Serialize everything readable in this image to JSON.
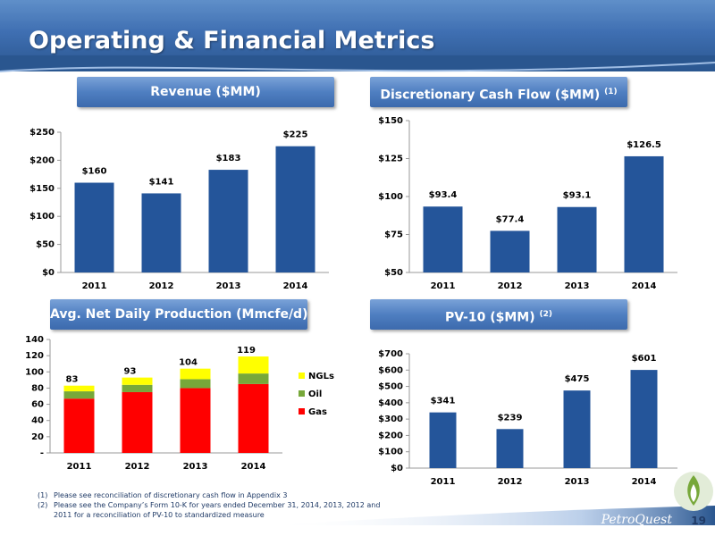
{
  "header": {
    "title": "Operating & Financial Metrics"
  },
  "panels": {
    "revenue": {
      "label": "Revenue ($MM)"
    },
    "dcf": {
      "label": "Discretionary Cash Flow ($MM)",
      "note": "(1)"
    },
    "production": {
      "label": "Avg. Net Daily Production (Mmcfe/d)"
    },
    "pv10": {
      "label": "PV-10 ($MM)",
      "note": "(2)"
    }
  },
  "chart_data": [
    {
      "id": "revenue",
      "type": "bar",
      "categories": [
        "2011",
        "2012",
        "2013",
        "2014"
      ],
      "values": [
        160,
        141,
        183,
        225
      ],
      "data_labels": [
        "$160",
        "$141",
        "$183",
        "$225"
      ],
      "yticks": [
        "$0",
        "$50",
        "$100",
        "$150",
        "$200",
        "$250"
      ],
      "ylim": [
        0,
        250
      ],
      "color": "#24559a"
    },
    {
      "id": "dcf",
      "type": "bar",
      "categories": [
        "2011",
        "2012",
        "2013",
        "2014"
      ],
      "values": [
        93.4,
        77.4,
        93.1,
        126.5
      ],
      "data_labels": [
        "$93.4",
        "$77.4",
        "$93.1",
        "$126.5"
      ],
      "yticks": [
        "$50",
        "$75",
        "$100",
        "$125",
        "$150"
      ],
      "ylim": [
        50,
        150
      ],
      "color": "#24559a"
    },
    {
      "id": "production",
      "type": "bar",
      "stacked": true,
      "categories": [
        "2011",
        "2012",
        "2013",
        "2014"
      ],
      "series": [
        {
          "name": "Gas",
          "values": [
            67,
            75,
            80,
            85
          ],
          "color": "#ff0000"
        },
        {
          "name": "Oil",
          "values": [
            9,
            9,
            11,
            13
          ],
          "color": "#77a83a"
        },
        {
          "name": "NGLs",
          "values": [
            7,
            9,
            13,
            21
          ],
          "color": "#ffff00"
        }
      ],
      "totals": [
        "83",
        "93",
        "104",
        "119"
      ],
      "yticks": [
        "-",
        "20",
        "40",
        "60",
        "80",
        "100",
        "120",
        "140"
      ],
      "ylim": [
        0,
        140
      ],
      "legend_position": "right"
    },
    {
      "id": "pv10",
      "type": "bar",
      "categories": [
        "2011",
        "2012",
        "2013",
        "2014"
      ],
      "values": [
        341,
        239,
        475,
        601
      ],
      "data_labels": [
        "$341",
        "$239",
        "$475",
        "$601"
      ],
      "yticks": [
        "$0",
        "$100",
        "$200",
        "$300",
        "$400",
        "$500",
        "$600",
        "$700"
      ],
      "ylim": [
        0,
        700
      ],
      "color": "#24559a"
    }
  ],
  "footnotes": [
    {
      "num": "(1)",
      "text": "Please see reconciliation of discretionary cash flow in Appendix 3"
    },
    {
      "num": "(2)",
      "text": "Please see the Company’s Form 10-K for years ended December 31, 2014, 2013, 2012 and 2011 for a reconciliation of PV-10 to standardized measure"
    }
  ],
  "footer": {
    "brand": "PetroQuest",
    "page_number": "19"
  }
}
